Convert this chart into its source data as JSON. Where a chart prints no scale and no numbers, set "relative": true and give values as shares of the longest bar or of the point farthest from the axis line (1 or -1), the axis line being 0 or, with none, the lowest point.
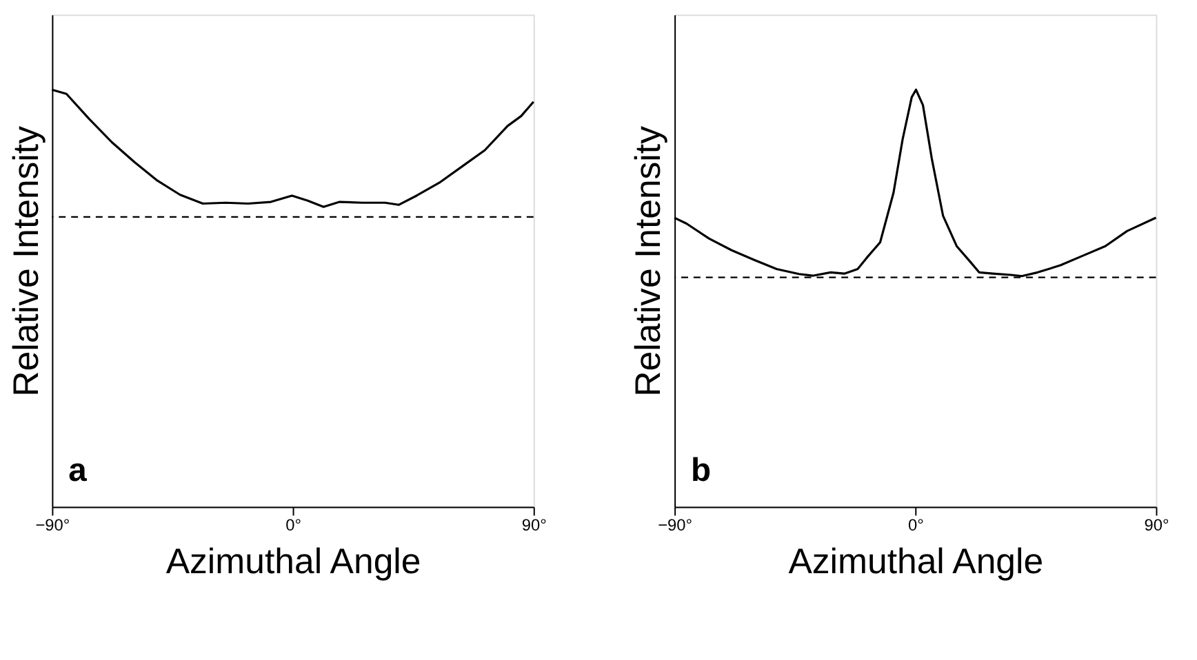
{
  "chart_data": [
    {
      "type": "line",
      "relative": true,
      "xlabel": "Azimuthal  Angle",
      "ylabel": "Relative Intensity",
      "xlim": [
        -90,
        90
      ],
      "xticks": [
        {
          "value": -90,
          "label": "−90°"
        },
        {
          "value": 0,
          "label": "0°"
        },
        {
          "value": 90,
          "label": "90°"
        }
      ],
      "grid": false,
      "marker": "none",
      "line_style": "solid",
      "annotations": [
        "a"
      ],
      "ref_lines": [
        {
          "axis": "y",
          "value": 0.695,
          "label": null,
          "color": "#000000",
          "line_style": "dashed"
        }
      ],
      "series": [
        {
          "color": "#000000",
          "x": [
            -90,
            -84.6,
            -76.1,
            -67.6,
            -59.1,
            -50.6,
            -42.1,
            -33.6,
            -25.1,
            -16.7,
            -8.2,
            -0.3,
            5.6,
            11.5,
            17.5,
            26,
            34.5,
            39.6,
            46.3,
            54.8,
            63.3,
            71.8,
            80.3,
            85.4,
            90
          ],
          "values": [
            1.0,
            0.99,
            0.93,
            0.874,
            0.826,
            0.782,
            0.748,
            0.727,
            0.729,
            0.727,
            0.731,
            0.746,
            0.734,
            0.719,
            0.731,
            0.729,
            0.729,
            0.724,
            0.746,
            0.777,
            0.816,
            0.855,
            0.913,
            0.937,
            0.971
          ]
        }
      ]
    },
    {
      "type": "line",
      "relative": true,
      "xlabel": "Azimuthal  Angle",
      "ylabel": "Relative Intensity",
      "xlim": [
        -90,
        90
      ],
      "xticks": [
        {
          "value": -90,
          "label": "−90°"
        },
        {
          "value": 0,
          "label": "0°"
        },
        {
          "value": 90,
          "label": "90°"
        }
      ],
      "grid": false,
      "marker": "none",
      "line_style": "solid",
      "annotations": [
        "b"
      ],
      "ref_lines": [
        {
          "axis": "y",
          "value": 0.55,
          "label": null,
          "color": "#000000",
          "line_style": "dashed"
        }
      ],
      "series": [
        {
          "color": "#000000",
          "x": [
            -90,
            -85.5,
            -77,
            -68.6,
            -60.2,
            -51.8,
            -43.4,
            -38.3,
            -31.6,
            -26.5,
            -21.5,
            -18.1,
            -13.1,
            -8.1,
            -4.7,
            -1.3,
            0.3,
            2.9,
            6.2,
            10.4,
            15.5,
            20.5,
            23.9,
            29,
            35.7,
            39.9,
            45.8,
            54.3,
            62.7,
            71.1,
            79.2,
            90
          ],
          "values": [
            0.693,
            0.679,
            0.643,
            0.615,
            0.592,
            0.57,
            0.558,
            0.554,
            0.562,
            0.559,
            0.57,
            0.597,
            0.634,
            0.753,
            0.881,
            0.982,
            1.0,
            0.963,
            0.835,
            0.698,
            0.625,
            0.588,
            0.562,
            0.559,
            0.556,
            0.553,
            0.562,
            0.579,
            0.602,
            0.625,
            0.661,
            0.693
          ]
        }
      ]
    }
  ]
}
